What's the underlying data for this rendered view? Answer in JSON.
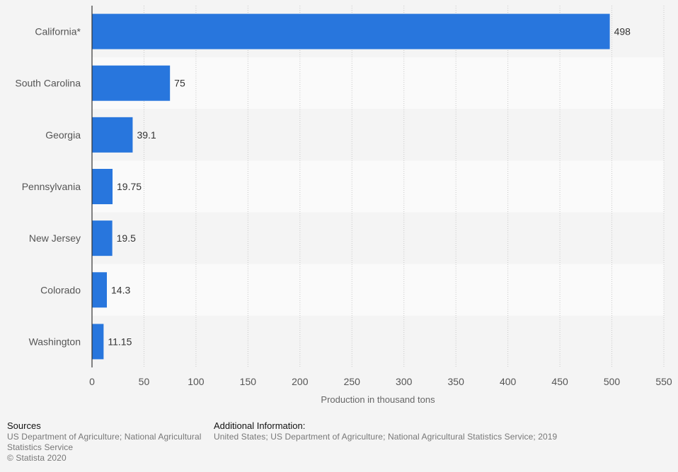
{
  "chart_data": {
    "type": "bar",
    "orientation": "horizontal",
    "categories": [
      "California*",
      "South Carolina",
      "Georgia",
      "Pennsylvania",
      "New Jersey",
      "Colorado",
      "Washington"
    ],
    "values": [
      498,
      75,
      39.1,
      19.75,
      19.5,
      14.3,
      11.15
    ],
    "value_labels": [
      "498",
      "75",
      "39.1",
      "19.75",
      "19.5",
      "14.3",
      "11.15"
    ],
    "xlabel": "Production in thousand tons",
    "ylabel": "",
    "xlim": [
      0,
      550
    ],
    "xticks": [
      0,
      50,
      100,
      150,
      200,
      250,
      300,
      350,
      400,
      450,
      500,
      550
    ],
    "grid": true,
    "bar_color": "#2876dd"
  },
  "footer": {
    "sources_heading": "Sources",
    "sources_text": "US Department of Agriculture; National Agricultural Statistics Service",
    "copyright": "© Statista 2020",
    "additional_heading": "Additional Information:",
    "additional_text": "United States; US Department of Agriculture; National Agricultural Statistics Service; 2019"
  }
}
